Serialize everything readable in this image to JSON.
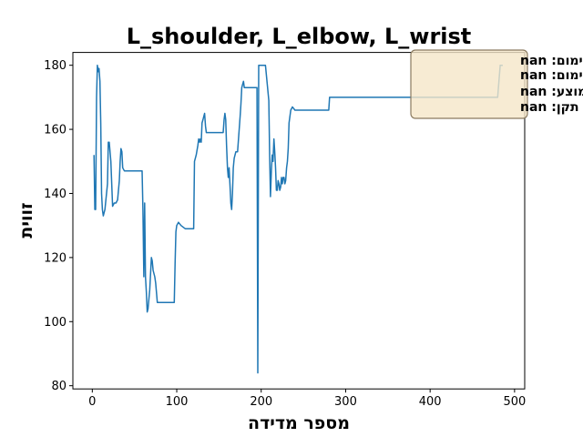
{
  "chart_data": {
    "type": "line",
    "title": "L_shoulder, L_elbow, L_wrist",
    "xlabel": "מספר מדידה",
    "ylabel": "זווית",
    "xlim": [
      -23,
      512
    ],
    "ylim": [
      79,
      184
    ],
    "x_ticks": [
      0,
      100,
      200,
      300,
      400,
      500
    ],
    "y_ticks": [
      80,
      100,
      120,
      140,
      160,
      180
    ],
    "grid": false,
    "stats_box": {
      "placement": "top-right",
      "lines": [
        "מינימום: nan",
        "מקסימום: nan",
        "ממוצע: nan",
        "סטיית תקן: nan"
      ]
    },
    "series": [
      {
        "color": "#1f77b4",
        "x": [
          2,
          3,
          4,
          5,
          6,
          7,
          8,
          9,
          10,
          11,
          12,
          13,
          15,
          18,
          19,
          20,
          22,
          24,
          26,
          28,
          30,
          32,
          33,
          34,
          35,
          36,
          38,
          40,
          45,
          50,
          55,
          59,
          60,
          61,
          62,
          63,
          64,
          65,
          66,
          68,
          70,
          71,
          72,
          74,
          75,
          76,
          77,
          78,
          80,
          85,
          90,
          95,
          97,
          98,
          99,
          100,
          102,
          105,
          110,
          115,
          119,
          120,
          121,
          123,
          125,
          126,
          127,
          128,
          129,
          130,
          131,
          133,
          134,
          135,
          137,
          140,
          145,
          150,
          155,
          156,
          157,
          158,
          159,
          160,
          161,
          162,
          163,
          164,
          165,
          166,
          167,
          168,
          170,
          172,
          175,
          176,
          177,
          178,
          179,
          180,
          182,
          185,
          190,
          195,
          196,
          197,
          198,
          205,
          209,
          210,
          211,
          212,
          213,
          214,
          215,
          216,
          217,
          218,
          219,
          220,
          221,
          222,
          223,
          224,
          225,
          226,
          227,
          228,
          229,
          230,
          231,
          232,
          233,
          235,
          237,
          240,
          242,
          245,
          247,
          250,
          255,
          260,
          265,
          270,
          275,
          280,
          281,
          285,
          295,
          310,
          330,
          350,
          380,
          410,
          440,
          455,
          460,
          465,
          470,
          475,
          480,
          483,
          486
        ],
        "y": [
          152,
          135,
          135,
          170,
          180,
          178,
          179,
          175,
          162,
          140,
          135,
          133,
          135,
          143,
          156,
          156,
          150,
          136,
          137,
          137,
          138,
          144,
          150,
          154,
          153,
          148,
          147,
          147,
          147,
          147,
          147,
          147,
          135,
          114,
          137,
          114,
          109,
          103,
          104,
          110,
          120,
          119,
          116,
          114,
          112,
          109,
          106,
          106,
          106,
          106,
          106,
          106,
          106,
          118,
          128,
          130,
          131,
          130,
          129,
          129,
          129,
          129,
          150,
          152,
          155,
          157,
          156,
          157,
          156,
          162,
          163,
          165,
          161,
          159,
          159,
          159,
          159,
          159,
          159,
          163,
          165,
          163,
          155,
          148,
          145,
          148,
          143,
          137,
          135,
          140,
          148,
          151,
          153,
          153,
          164,
          168,
          173,
          174,
          175,
          173,
          173,
          173,
          173,
          173,
          84,
          180,
          180,
          180,
          169,
          152,
          139,
          147,
          152,
          150,
          157,
          153,
          148,
          141,
          141,
          144,
          143,
          141,
          142,
          145,
          143,
          145,
          145,
          143,
          144,
          148,
          150,
          154,
          162,
          166,
          167,
          166,
          166,
          166,
          166,
          166,
          166,
          166,
          166,
          166,
          166,
          166,
          170,
          170,
          170,
          170,
          170,
          170,
          170,
          170,
          170,
          170,
          170,
          170,
          170,
          170,
          170,
          180,
          180
        ]
      }
    ]
  }
}
